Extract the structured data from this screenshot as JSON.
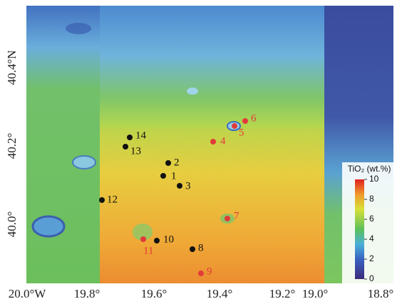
{
  "map": {
    "x_axis_labels": [
      "20.0°W",
      "19.8°",
      "19.6°",
      "19.4°",
      "19.2°",
      "19.0°",
      "18.8°"
    ],
    "y_axis_labels": [
      "40.4°N",
      "40.2°",
      "40.0°"
    ],
    "points": [
      {
        "label": "1"
      },
      {
        "label": "2"
      },
      {
        "label": "3"
      },
      {
        "label": "4"
      },
      {
        "label": "5"
      },
      {
        "label": "6"
      },
      {
        "label": "7"
      },
      {
        "label": "8"
      },
      {
        "label": "9"
      },
      {
        "label": "10"
      },
      {
        "label": "11"
      },
      {
        "label": "12"
      },
      {
        "label": "13"
      },
      {
        "label": "14"
      }
    ],
    "colorbar": {
      "title": "TiO₂ (wt.%)",
      "lim": [
        0,
        10
      ],
      "ticks": [
        0,
        2,
        4,
        6,
        8,
        10
      ]
    }
  }
}
